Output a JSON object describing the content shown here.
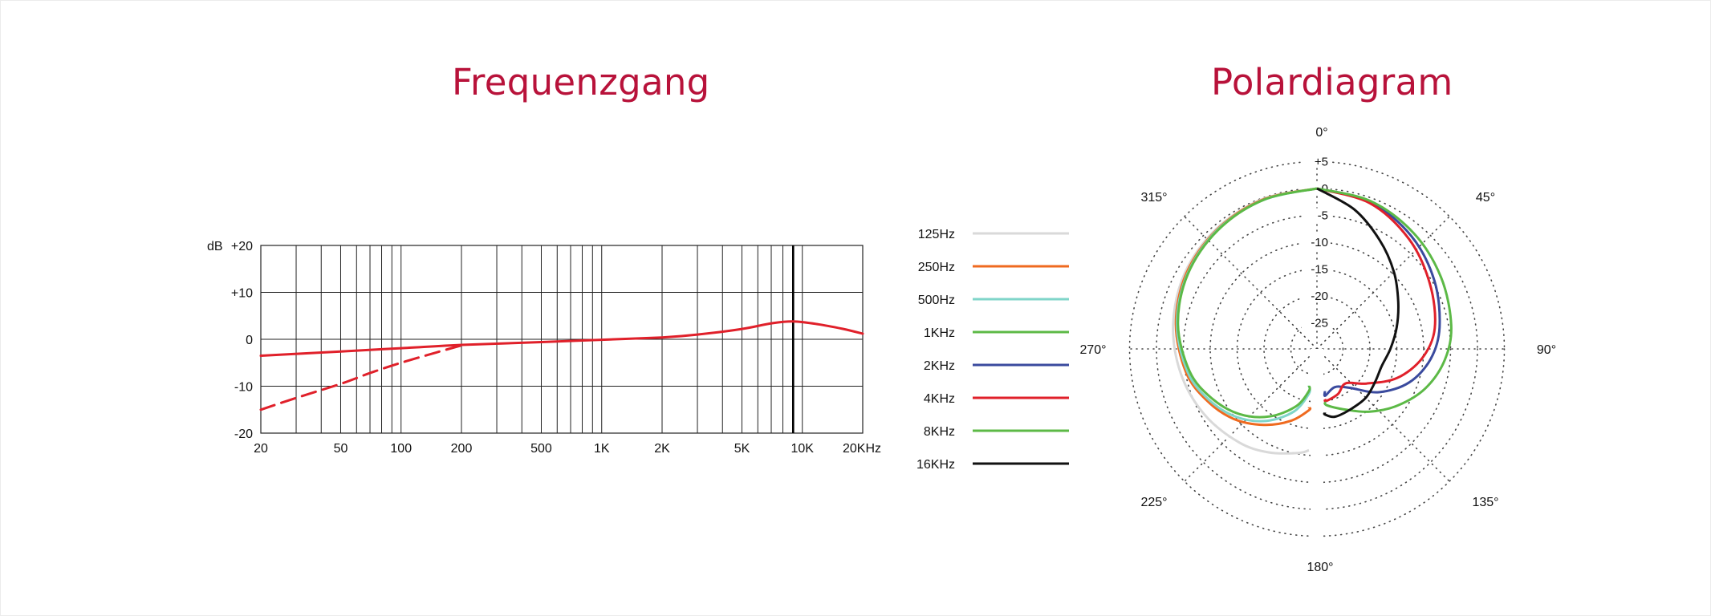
{
  "page": {
    "left_title": "Frequenzgang",
    "right_title": "Polardiagram"
  },
  "chart_data": [
    {
      "type": "line",
      "title": "Frequenzgang",
      "ylabel": "dB",
      "xscale": "log",
      "xlim": [
        20,
        20000
      ],
      "ylim": [
        -20,
        20
      ],
      "grid": true,
      "x_tick_labels": [
        "20",
        "50",
        "100",
        "200",
        "500",
        "1K",
        "2K",
        "5K",
        "10K",
        "20KHz"
      ],
      "x_ticks": [
        20,
        50,
        100,
        200,
        500,
        1000,
        2000,
        5000,
        10000,
        20000
      ],
      "y_tick_labels": [
        "+20",
        "+10",
        "0",
        "-10",
        "-20"
      ],
      "y_ticks": [
        20,
        10,
        0,
        -10,
        -20
      ],
      "marker_frequency": 9000,
      "series": [
        {
          "style": "solid",
          "color": "#e0202a",
          "x": [
            20,
            50,
            100,
            200,
            500,
            1000,
            2000,
            3000,
            5000,
            7000,
            9000,
            12000,
            16000,
            20000
          ],
          "y": [
            -3.5,
            -2.6,
            -1.9,
            -1.2,
            -0.6,
            -0.1,
            0.4,
            1.0,
            2.2,
            3.4,
            3.8,
            3.2,
            2.2,
            1.2
          ]
        },
        {
          "style": "dashed",
          "color": "#e0202a",
          "x": [
            20,
            30,
            50,
            70,
            100,
            150,
            200
          ],
          "y": [
            -15,
            -12.5,
            -9.5,
            -7.2,
            -5.0,
            -2.8,
            -1.3
          ]
        }
      ]
    },
    {
      "type": "polar",
      "title": "Polardiagram",
      "angle_labels": [
        "0°",
        "45°",
        "90°",
        "135°",
        "180°",
        "225°",
        "270°",
        "315°"
      ],
      "angles_deg": [
        0,
        45,
        90,
        135,
        180,
        225,
        270,
        315
      ],
      "radial_labels": [
        "+5",
        "0",
        "-5",
        "-10",
        "-15",
        "-20",
        "-25"
      ],
      "radial_values": [
        5,
        0,
        -5,
        -10,
        -15,
        -20,
        -25
      ],
      "rlim": [
        -30,
        5
      ],
      "grid": "dotted",
      "legend_position": "left",
      "series": [
        {
          "name": "125Hz",
          "color": "#d9d9d9",
          "angles": [
            0,
            20,
            40,
            60,
            80,
            100,
            120,
            140,
            155,
            170,
            180
          ],
          "values": [
            0,
            -0.2,
            -0.7,
            -1.5,
            -2.7,
            -4.1,
            -5.6,
            -7.2,
            -8.6,
            -10.2,
            -11.0
          ]
        },
        {
          "name": "250Hz",
          "color": "#ef6a1f",
          "angles": [
            0,
            20,
            40,
            60,
            80,
            100,
            115,
            130,
            145,
            160,
            175,
            180
          ],
          "values": [
            0,
            -0.3,
            -0.9,
            -1.8,
            -3.2,
            -5.1,
            -7.2,
            -9.6,
            -12.6,
            -15.6,
            -18.4,
            -19.0
          ]
        },
        {
          "name": "500Hz",
          "color": "#7fd5c9",
          "angles": [
            0,
            20,
            40,
            60,
            80,
            100,
            115,
            130,
            145,
            160,
            175,
            180
          ],
          "values": [
            0,
            -0.4,
            -1.0,
            -2.0,
            -3.4,
            -5.4,
            -7.6,
            -10.2,
            -13.5,
            -17.5,
            -21.5,
            -23.0
          ]
        },
        {
          "name": "1KHz",
          "color": "#5cb946",
          "angles": [
            0,
            20,
            40,
            60,
            80,
            100,
            115,
            130,
            145,
            160,
            175,
            180
          ],
          "values": [
            0,
            -0.4,
            -1.1,
            -2.1,
            -3.6,
            -5.8,
            -8.2,
            -11.0,
            -14.5,
            -18.5,
            -22.0,
            -23.0
          ]
        },
        {
          "name": "2KHz",
          "color": "#3a4a9e",
          "angles": [
            0,
            20,
            40,
            60,
            80,
            95,
            110,
            125,
            140,
            155,
            170,
            180
          ],
          "values": [
            0,
            -0.8,
            -2.5,
            -4.6,
            -6.7,
            -8.6,
            -11.6,
            -15.8,
            -20.4,
            -22.0,
            -21.0,
            -22.0
          ]
        },
        {
          "name": "4KHz",
          "color": "#e0202a",
          "angles": [
            0,
            20,
            40,
            60,
            80,
            95,
            110,
            125,
            140,
            155,
            170,
            180
          ],
          "values": [
            0,
            -1.0,
            -3.2,
            -5.6,
            -7.6,
            -10.2,
            -14.0,
            -18.6,
            -21.5,
            -20.6,
            -20.0,
            -20.5
          ]
        },
        {
          "name": "8KHz",
          "color": "#5cb946",
          "angles": [
            0,
            20,
            40,
            60,
            80,
            95,
            110,
            125,
            140,
            155,
            170,
            180
          ],
          "values": [
            0,
            -0.6,
            -1.8,
            -3.2,
            -4.5,
            -6.0,
            -8.4,
            -11.5,
            -14.6,
            -17.4,
            -19.2,
            -20.0
          ]
        },
        {
          "name": "16KHz",
          "color": "#111111",
          "angles": [
            0,
            15,
            30,
            45,
            60,
            75,
            90,
            105,
            120,
            135,
            150,
            165,
            175,
            180
          ],
          "values": [
            0,
            -3.0,
            -6.5,
            -9.6,
            -12.4,
            -14.5,
            -16.2,
            -17.4,
            -17.4,
            -17.0,
            -17.0,
            -16.8,
            -17.6,
            -18.0
          ]
        }
      ]
    }
  ]
}
